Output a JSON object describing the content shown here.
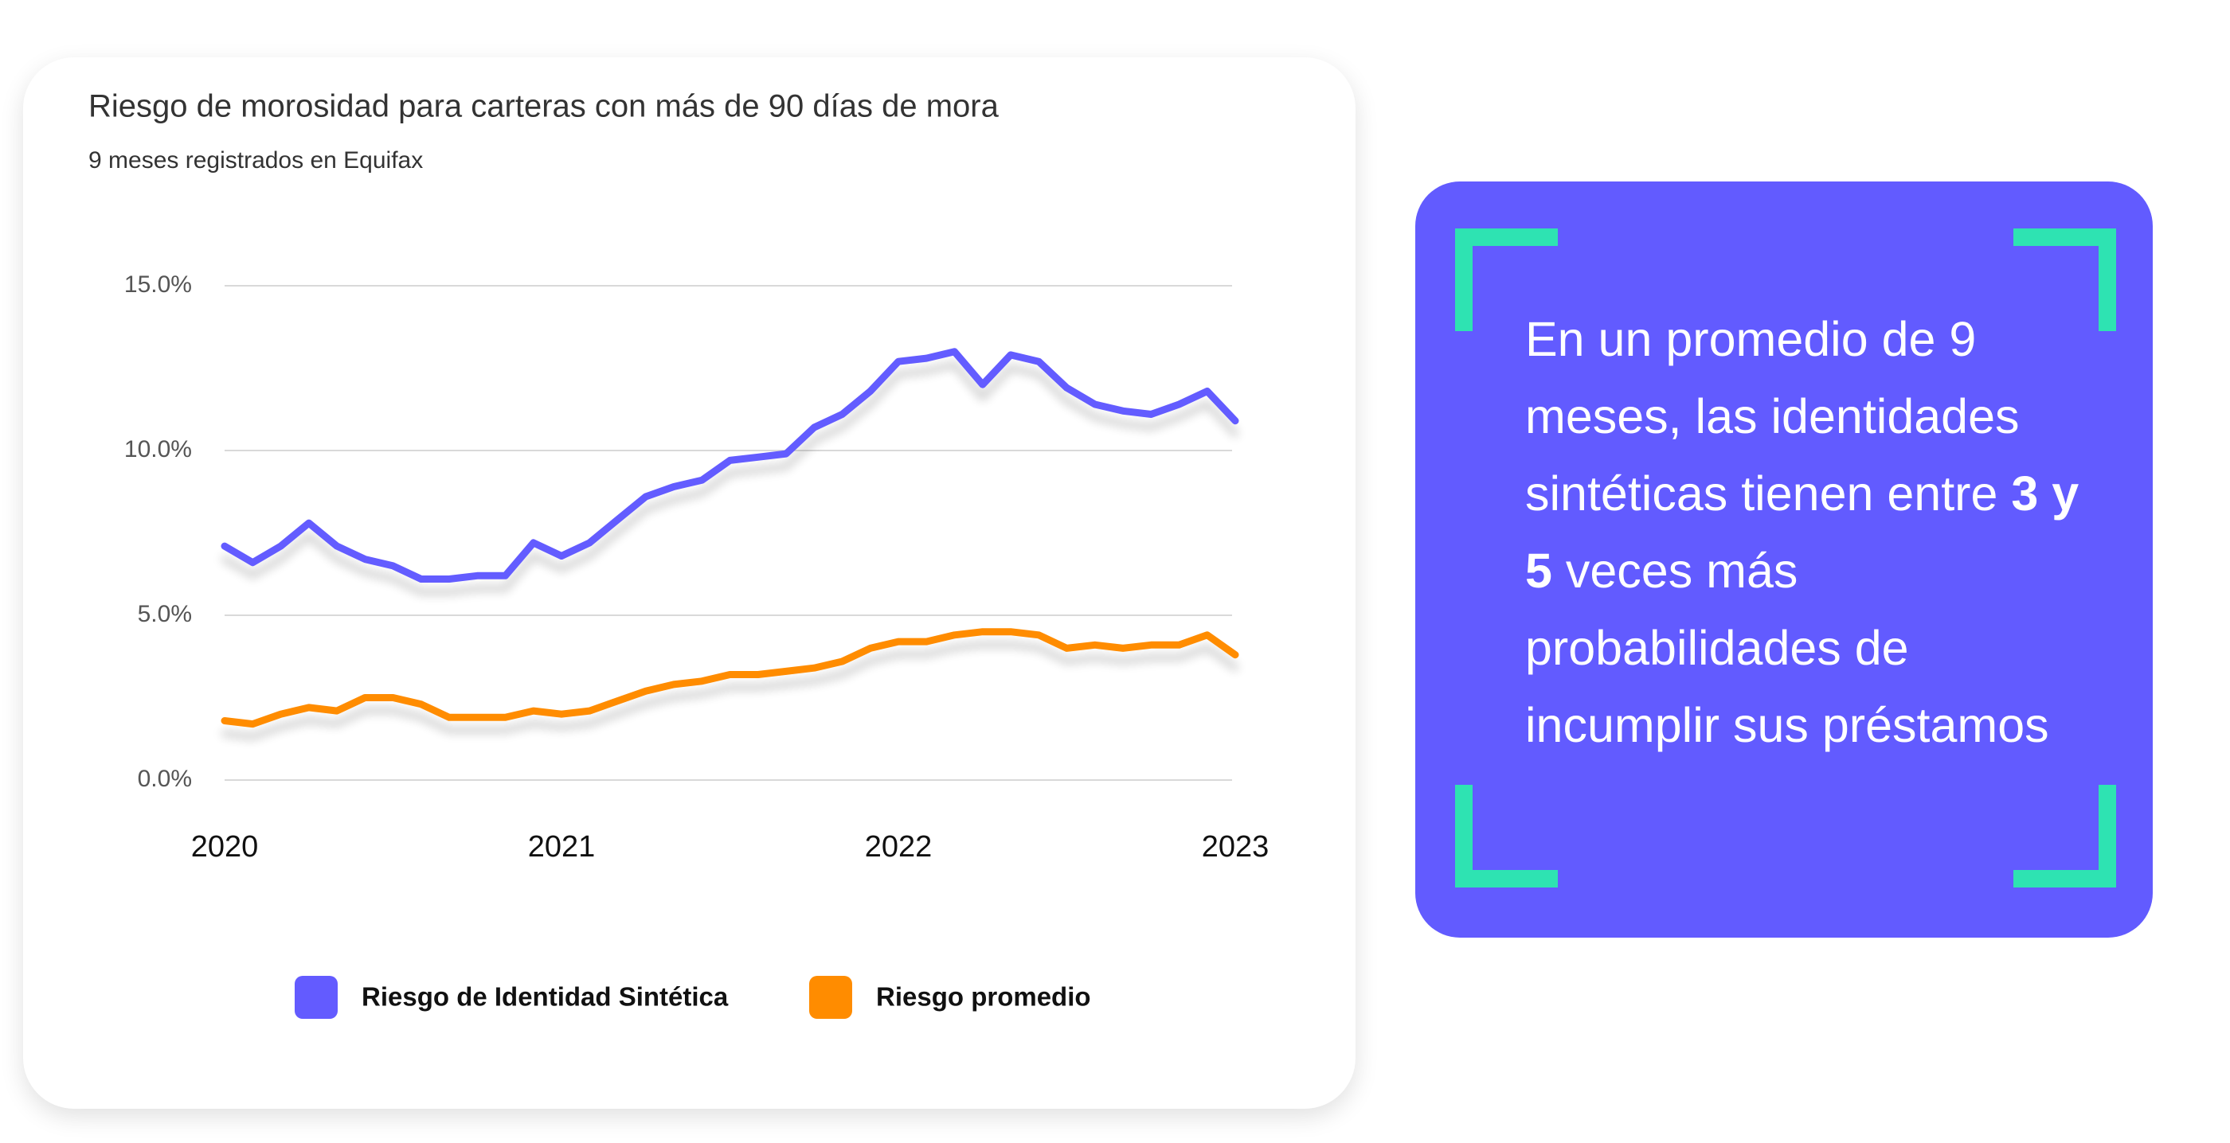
{
  "chart_data": {
    "type": "line",
    "title": "Riesgo de morosidad para carteras con más de 90 días de mora",
    "subtitle": "9 meses registrados en Equifax",
    "categories": [
      "2020",
      null,
      null,
      null,
      null,
      null,
      null,
      null,
      null,
      null,
      null,
      null,
      "2021",
      null,
      null,
      null,
      null,
      null,
      null,
      null,
      null,
      null,
      null,
      null,
      "2022",
      null,
      null,
      null,
      null,
      null,
      null,
      null,
      null,
      null,
      null,
      null,
      "2023"
    ],
    "series": [
      {
        "name": "Riesgo de Identidad Sintética",
        "color": "#635bff",
        "values": [
          7.1,
          6.6,
          7.1,
          7.8,
          7.1,
          6.7,
          6.5,
          6.1,
          6.1,
          6.2,
          6.2,
          7.2,
          6.8,
          7.2,
          7.9,
          8.6,
          8.9,
          9.1,
          9.7,
          9.8,
          9.9,
          10.7,
          11.1,
          11.8,
          12.7,
          12.8,
          13.0,
          12.0,
          12.9,
          12.7,
          11.9,
          11.4,
          11.2,
          11.1,
          11.4,
          11.8,
          10.9
        ]
      },
      {
        "name": "Riesgo promedio",
        "color": "#ff8c00",
        "values": [
          1.8,
          1.7,
          2.0,
          2.2,
          2.1,
          2.5,
          2.5,
          2.3,
          1.9,
          1.9,
          1.9,
          2.1,
          2.0,
          2.1,
          2.4,
          2.7,
          2.9,
          3.0,
          3.2,
          3.2,
          3.3,
          3.4,
          3.6,
          4.0,
          4.2,
          4.2,
          4.4,
          4.5,
          4.5,
          4.4,
          4.0,
          4.1,
          4.0,
          4.1,
          4.1,
          4.4,
          3.8
        ]
      }
    ],
    "ylim": [
      0,
      15
    ],
    "yticks": [
      {
        "value": 0,
        "label": "0.0%"
      },
      {
        "value": 5,
        "label": "5.0%"
      },
      {
        "value": 10,
        "label": "10.0%"
      },
      {
        "value": 15,
        "label": "15.0%"
      }
    ],
    "grid": true
  },
  "callout": {
    "text_start": "En un promedio de 9 meses, las identidades sintéticas tienen entre ",
    "emphasis": "3 y 5",
    "text_end": " veces más probabilidades de incumplir sus préstamos"
  }
}
